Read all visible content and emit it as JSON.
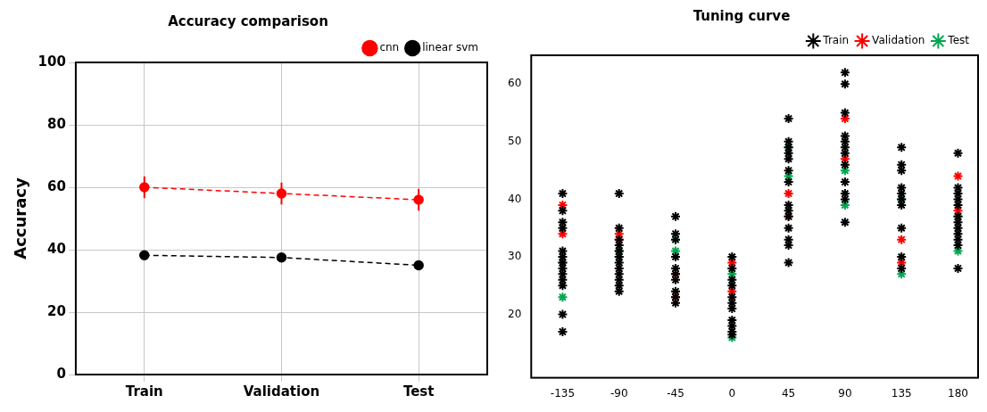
{
  "chart_data": [
    {
      "type": "line",
      "title": "Accuracy comparison",
      "y_label": "Accuracy",
      "categories": [
        "Train",
        "Validation",
        "Test"
      ],
      "series": [
        {
          "name": "cnn",
          "color": "#ff0000",
          "marker": "circle",
          "line_style": "dashed",
          "values": [
            60,
            58,
            56
          ],
          "errors": [
            3.5,
            3.5,
            3.5
          ]
        },
        {
          "name": "linear svm",
          "color": "#000000",
          "marker": "circle",
          "line_style": "dashed",
          "values": [
            38.2,
            37.5,
            35
          ],
          "errors": [
            0.5,
            0.5,
            0.5
          ]
        }
      ],
      "ylim": [
        0,
        100
      ],
      "yticks": [
        0,
        20,
        40,
        60,
        80,
        100
      ],
      "grid": true,
      "legend": "upper right"
    },
    {
      "type": "scatter",
      "title": "Tuning curve",
      "series": [
        {
          "name": "Train",
          "color": "#000000",
          "marker": "star",
          "x": [
            -135,
            -135,
            -135,
            -135,
            -135,
            -135,
            -135,
            -135,
            -135,
            -135,
            -135,
            -135,
            -135,
            -90,
            -90,
            -90,
            -90,
            -90,
            -90,
            -90,
            -90,
            -90,
            -90,
            -90,
            -90,
            -45,
            -45,
            -45,
            -45,
            -45,
            -45,
            -45,
            -45,
            -45,
            -45,
            0,
            0,
            0,
            0,
            0,
            0,
            0,
            0,
            0,
            0,
            0,
            45,
            45,
            45,
            45,
            45,
            45,
            45,
            45,
            45,
            45,
            45,
            45,
            45,
            45,
            90,
            90,
            90,
            90,
            90,
            90,
            90,
            90,
            90,
            90,
            90,
            90,
            135,
            135,
            135,
            135,
            135,
            135,
            135,
            135,
            135,
            135,
            180,
            180,
            180,
            180,
            180,
            180,
            180,
            180,
            180,
            180,
            180,
            180
          ],
          "values": [
            41,
            38,
            36,
            35,
            31,
            30,
            29,
            28,
            27,
            26,
            25,
            20,
            17,
            41,
            35,
            33,
            32,
            31,
            30,
            29,
            28,
            27,
            26,
            25,
            24,
            37,
            34,
            33,
            30,
            28,
            27,
            26,
            24,
            23,
            22,
            30,
            28,
            26,
            25,
            23,
            22,
            21,
            19,
            18,
            17,
            16.5,
            54,
            50,
            49,
            48,
            47,
            45,
            43,
            39,
            38,
            37,
            35,
            33,
            32,
            29,
            62,
            60,
            55,
            51,
            50,
            49,
            48,
            46,
            43,
            41,
            40,
            36,
            49,
            46,
            45,
            42,
            41,
            40,
            39,
            35,
            30,
            28,
            48,
            42,
            41,
            40,
            39,
            37,
            36,
            35,
            34,
            33,
            32,
            28
          ]
        },
        {
          "name": "Validation",
          "color": "#ff0000",
          "marker": "star",
          "x": [
            -135,
            -135,
            -90,
            -90,
            -45,
            -45,
            0,
            0,
            45,
            45,
            90,
            90,
            135,
            135,
            180,
            180
          ],
          "values": [
            39,
            34,
            34,
            33,
            27,
            23,
            29,
            24,
            41,
            37,
            54,
            47,
            33,
            29,
            44,
            38
          ]
        },
        {
          "name": "Test",
          "color": "#00a650",
          "marker": "star",
          "x": [
            -135,
            -135,
            -90,
            -90,
            -45,
            -45,
            0,
            0,
            45,
            45,
            90,
            90,
            135,
            135,
            180,
            180
          ],
          "values": [
            29,
            23,
            31,
            30,
            33,
            31,
            27,
            16,
            49,
            44,
            45,
            39,
            40,
            27,
            37,
            31
          ]
        }
      ],
      "xlim": [
        -160,
        196
      ],
      "xticks": [
        -135,
        -90,
        -45,
        0,
        45,
        90,
        135,
        180
      ],
      "ylim": [
        9,
        65
      ],
      "yticks": [
        20,
        30,
        40,
        50,
        60
      ],
      "grid": false,
      "legend": "upper right"
    }
  ]
}
